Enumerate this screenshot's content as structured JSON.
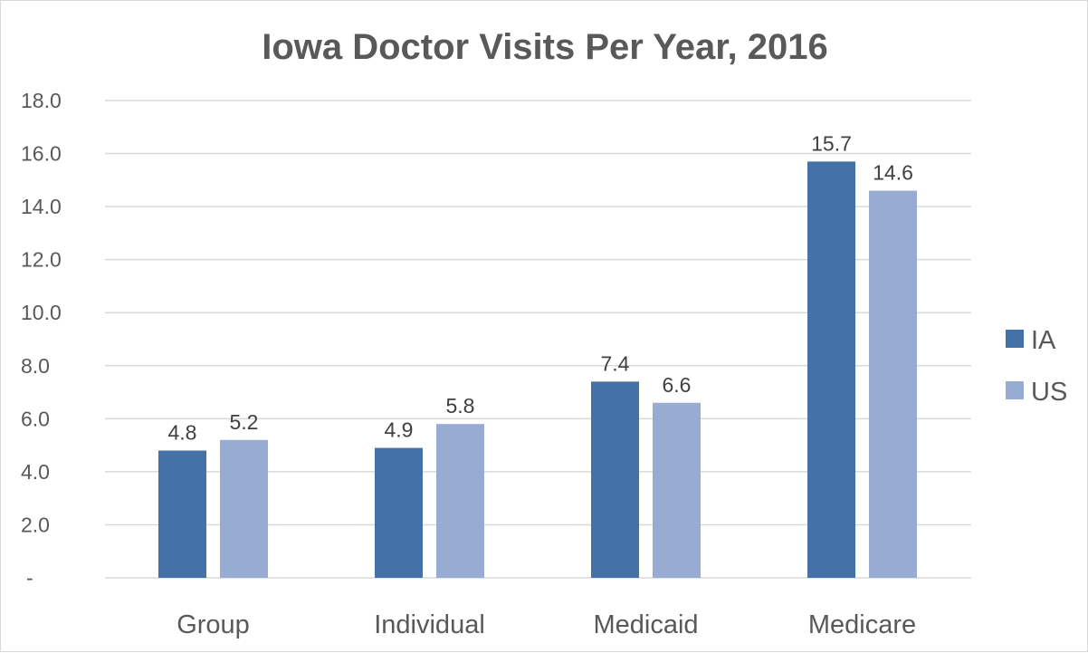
{
  "chart_data": {
    "type": "bar",
    "title": "Iowa Doctor Visits Per Year, 2016",
    "categories": [
      "Group",
      "Individual",
      "Medicaid",
      "Medicare"
    ],
    "series": [
      {
        "name": "IA",
        "color": "#4472a8",
        "values": [
          4.8,
          4.9,
          7.4,
          15.7
        ],
        "labels": [
          "4.8",
          "4.9",
          "7.4",
          "15.7"
        ]
      },
      {
        "name": "US",
        "color": "#97abd3",
        "values": [
          5.2,
          5.8,
          6.6,
          14.6
        ],
        "labels": [
          "5.2",
          "5.8",
          "6.6",
          "14.6"
        ]
      }
    ],
    "ylim": [
      0,
      18
    ],
    "yticks": [
      0,
      2,
      4,
      6,
      8,
      10,
      12,
      14,
      16,
      18
    ],
    "ytick_labels": [
      "-",
      "2.0",
      "4.0",
      "6.0",
      "8.0",
      "10.0",
      "12.0",
      "14.0",
      "16.0",
      "18.0"
    ],
    "xlabel": "",
    "ylabel": "",
    "grid": true,
    "legend_position": "right"
  }
}
